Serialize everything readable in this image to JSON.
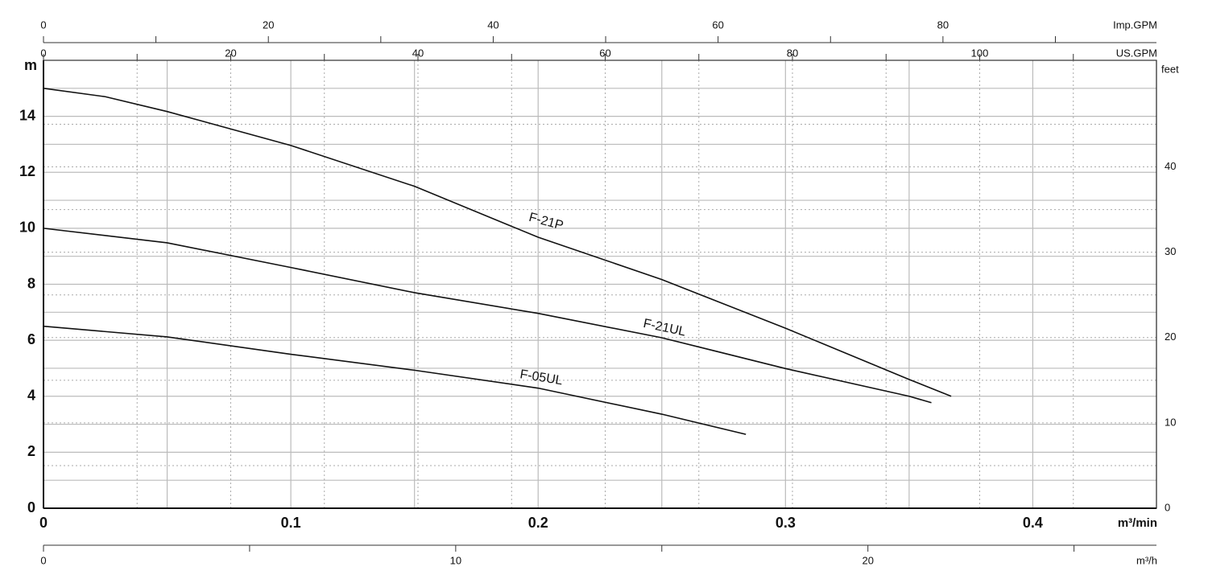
{
  "chart_data": {
    "type": "line",
    "xlabel": "m³/min",
    "ylabel": "m",
    "y2label": "feet",
    "xlim": [
      0,
      0.45
    ],
    "xticks": [
      0,
      0.1,
      0.2,
      0.3,
      0.4
    ],
    "xgrid": [
      0.05,
      0.15,
      0.25,
      0.35
    ],
    "ylim": [
      0,
      16
    ],
    "yticks": [
      0,
      2,
      4,
      6,
      8,
      10,
      12,
      14
    ],
    "ygrid": [
      1,
      3,
      5,
      7,
      9,
      11,
      13,
      15
    ],
    "y2lim": [
      0,
      52.49
    ],
    "y2ticks": [
      0,
      10,
      20,
      30,
      40
    ],
    "y2_minor_ticks": [
      5,
      15,
      25,
      35,
      45
    ],
    "grid": true,
    "top_axes": [
      {
        "label": "US.GPM",
        "lim": [
          0,
          118.88
        ],
        "ticks": [
          0,
          20,
          40,
          60,
          80,
          100
        ],
        "minor_ticks": [
          10,
          30,
          50,
          70,
          90,
          110
        ]
      },
      {
        "label": "Imp.GPM",
        "lim": [
          0,
          98.99
        ],
        "ticks": [
          0,
          20,
          40,
          60,
          80
        ],
        "minor_ticks": [
          10,
          30,
          50,
          70,
          90
        ]
      }
    ],
    "bottom_axis": {
      "label": "m³/h",
      "lim": [
        0,
        27
      ],
      "ticks": [
        0,
        10,
        20
      ],
      "minor_ticks": [
        5,
        15,
        25
      ]
    },
    "series": [
      {
        "name": "F-21P",
        "color": "#111111",
        "x": [
          0,
          0.025,
          0.05,
          0.1,
          0.15,
          0.2,
          0.25,
          0.3,
          0.35,
          0.367
        ],
        "values": [
          15.0,
          14.7,
          14.17,
          12.96,
          11.5,
          9.68,
          8.17,
          6.43,
          4.6,
          4.0
        ]
      },
      {
        "name": "F-21UL",
        "color": "#111111",
        "x": [
          0,
          0.05,
          0.1,
          0.15,
          0.2,
          0.25,
          0.3,
          0.35,
          0.359
        ],
        "values": [
          10.0,
          9.48,
          8.6,
          7.7,
          6.96,
          6.09,
          4.99,
          4.0,
          3.77
        ]
      },
      {
        "name": "F-05UL",
        "color": "#111111",
        "x": [
          0,
          0.05,
          0.1,
          0.15,
          0.2,
          0.25,
          0.284
        ],
        "values": [
          6.5,
          6.12,
          5.5,
          4.93,
          4.29,
          3.36,
          2.64
        ]
      }
    ]
  }
}
